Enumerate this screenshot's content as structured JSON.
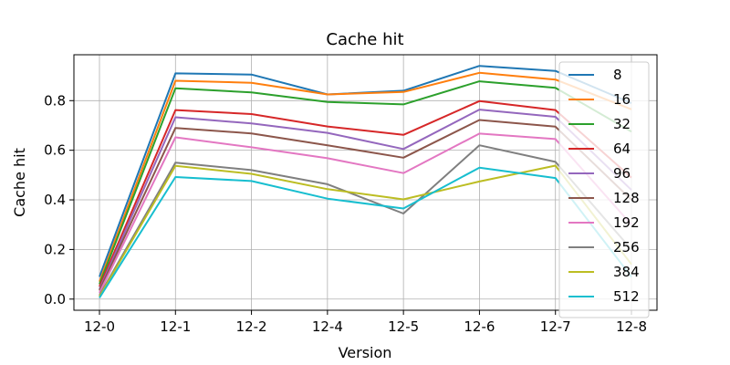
{
  "chart_data": {
    "type": "line",
    "title": "Cache hit",
    "xlabel": "Version",
    "ylabel": "Cache hit",
    "categories": [
      "12-0",
      "12-1",
      "12-2",
      "12-4",
      "12-5",
      "12-6",
      "12-7",
      "12-8"
    ],
    "ylim": [
      -0.045,
      0.985
    ],
    "yticks": [
      0.0,
      0.2,
      0.4,
      0.6,
      0.8
    ],
    "ytick_labels": [
      "0.0",
      "0.2",
      "0.4",
      "0.6",
      "0.8"
    ],
    "grid": true,
    "legend_position": "right",
    "series": [
      {
        "name": "8",
        "color": "#1f77b4",
        "values": [
          0.09,
          0.91,
          0.905,
          0.825,
          0.84,
          0.94,
          0.92,
          0.79
        ]
      },
      {
        "name": "16",
        "color": "#ff7f0e",
        "values": [
          0.07,
          0.88,
          0.872,
          0.825,
          0.835,
          0.912,
          0.885,
          0.765
        ]
      },
      {
        "name": "32",
        "color": "#2ca02c",
        "values": [
          0.06,
          0.85,
          0.833,
          0.795,
          0.785,
          0.878,
          0.852,
          0.675
        ]
      },
      {
        "name": "64",
        "color": "#d62728",
        "values": [
          0.05,
          0.762,
          0.746,
          0.696,
          0.662,
          0.798,
          0.762,
          0.49
        ]
      },
      {
        "name": "96",
        "color": "#9467bd",
        "values": [
          0.04,
          0.733,
          0.708,
          0.67,
          0.605,
          0.764,
          0.735,
          0.44
        ]
      },
      {
        "name": "128",
        "color": "#8c564b",
        "values": [
          0.035,
          0.69,
          0.668,
          0.62,
          0.57,
          0.722,
          0.695,
          0.4
        ]
      },
      {
        "name": "192",
        "color": "#e377c2",
        "values": [
          0.025,
          0.652,
          0.612,
          0.568,
          0.508,
          0.667,
          0.645,
          0.3
        ]
      },
      {
        "name": "256",
        "color": "#7f7f7f",
        "values": [
          0.015,
          0.55,
          0.52,
          0.463,
          0.345,
          0.62,
          0.553,
          0.2
        ]
      },
      {
        "name": "384",
        "color": "#bcbd22",
        "values": [
          0.01,
          0.537,
          0.505,
          0.443,
          0.402,
          0.474,
          0.538,
          0.14
        ]
      },
      {
        "name": "512",
        "color": "#17becf",
        "values": [
          0.005,
          0.492,
          0.476,
          0.405,
          0.365,
          0.53,
          0.488,
          0.09
        ]
      }
    ]
  }
}
